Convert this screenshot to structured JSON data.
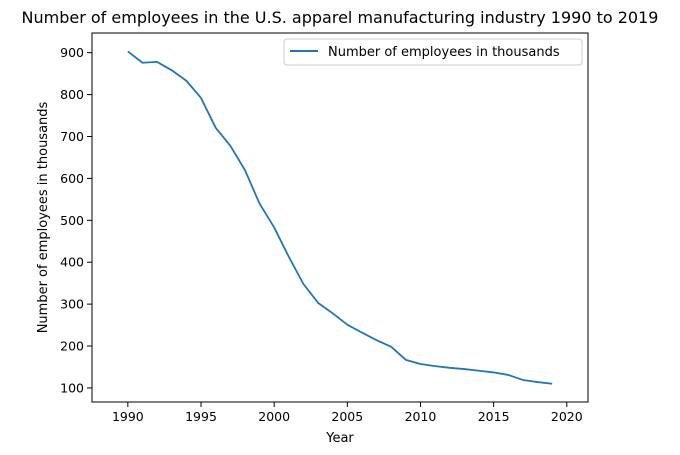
{
  "chart_data": {
    "type": "line",
    "title": "Number of employees in the U.S. apparel manufacturing industry 1990 to 2019",
    "xlabel": "Year",
    "ylabel": "Number of employees in thousands",
    "xlim": [
      1987.55,
      2021.45
    ],
    "ylim": [
      66.4,
      947.0
    ],
    "x_ticks": [
      1990,
      1995,
      2000,
      2005,
      2010,
      2015,
      2020
    ],
    "y_ticks": [
      100,
      200,
      300,
      400,
      500,
      600,
      700,
      800,
      900
    ],
    "grid": false,
    "legend_position": "top-right",
    "series": [
      {
        "name": "Number of employees in thousands",
        "color": "#1f77b4",
        "x": [
          1990,
          1991,
          1992,
          1993,
          1994,
          1995,
          1996,
          1997,
          1998,
          1999,
          2000,
          2001,
          2002,
          2003,
          2004,
          2005,
          2006,
          2007,
          2008,
          2009,
          2010,
          2011,
          2012,
          2013,
          2014,
          2015,
          2016,
          2017,
          2018,
          2019
        ],
        "y": [
          903,
          876,
          878,
          858,
          833,
          792,
          721,
          678,
          620,
          540,
          483,
          413,
          348,
          303,
          278,
          251,
          232,
          214,
          198,
          167,
          157,
          152,
          148,
          145,
          141,
          137,
          131,
          119,
          114,
          110
        ]
      }
    ]
  }
}
